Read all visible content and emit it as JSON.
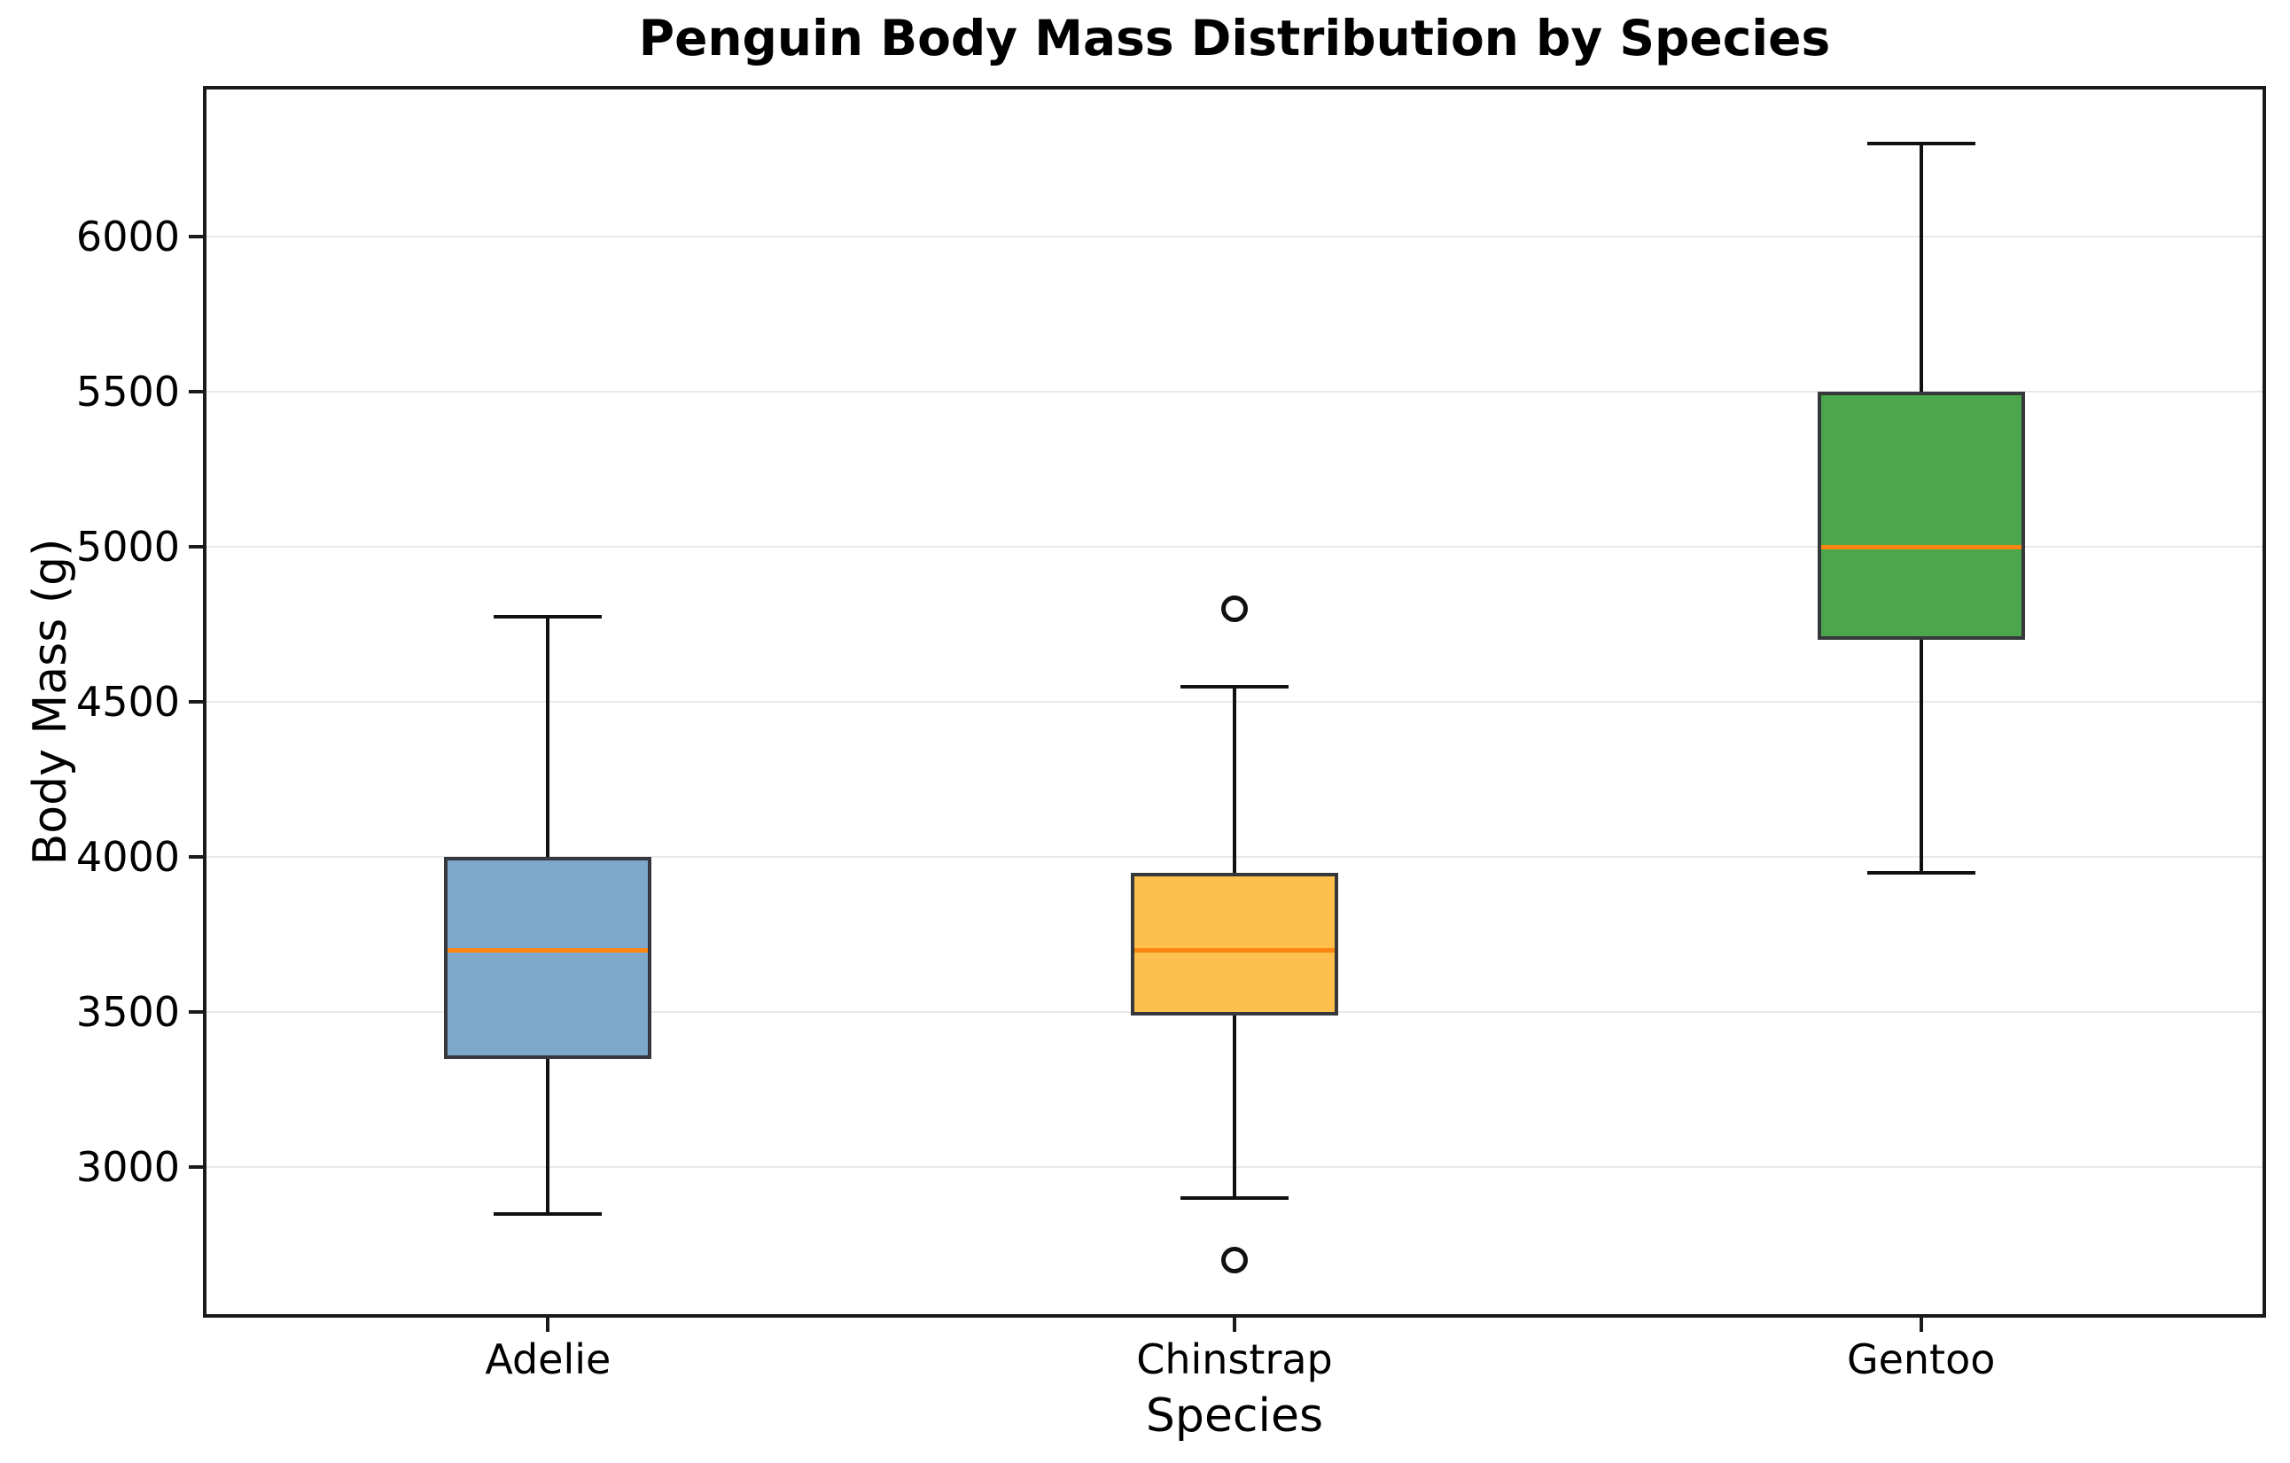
{
  "chart_data": {
    "type": "box",
    "title": "Penguin Body Mass Distribution by Species",
    "xlabel": "Species",
    "ylabel": "Body Mass (g)",
    "categories": [
      "Adelie",
      "Chinstrap",
      "Gentoo"
    ],
    "ylim": [
      2520,
      6480
    ],
    "yticks": [
      3000,
      3500,
      4000,
      4500,
      5000,
      5500,
      6000
    ],
    "ytick_labels": [
      "3000",
      "3500",
      "4000",
      "4500",
      "5000",
      "5500",
      "6000"
    ],
    "grid": "horizontal",
    "legend": "none",
    "series": [
      {
        "name": "Adelie",
        "whisker_low": 2850,
        "q1": 3350,
        "median": 3700,
        "q3": 4000,
        "whisker_high": 4775,
        "outliers": [],
        "fill_color": "#7da7cb"
      },
      {
        "name": "Chinstrap",
        "whisker_low": 2900,
        "q1": 3487.5,
        "median": 3700,
        "q3": 3950,
        "whisker_high": 4550,
        "outliers": [
          2700,
          4800
        ],
        "fill_color": "#fdbf4e"
      },
      {
        "name": "Gentoo",
        "whisker_low": 3950,
        "q1": 4700,
        "median": 5000,
        "q3": 5500,
        "whisker_high": 6300,
        "outliers": [],
        "fill_color": "#4ca64c"
      }
    ],
    "style_colors": {
      "median": "#fa8510",
      "box_edge": "#35393d",
      "whisker": "#111111",
      "gridline": "#e9e9e9",
      "frame": "#1a1a1a",
      "text": "#000000"
    }
  }
}
